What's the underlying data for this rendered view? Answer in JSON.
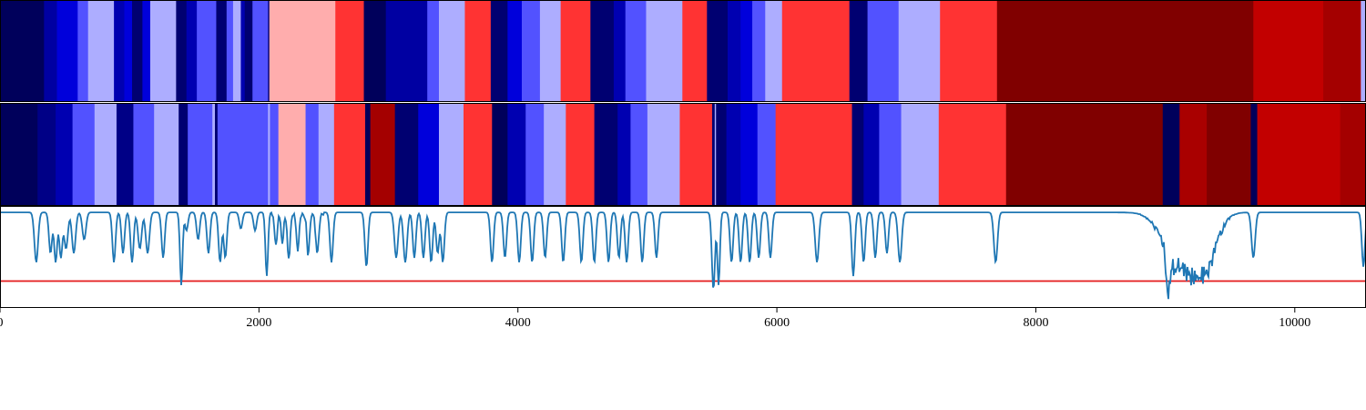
{
  "chart_data": [
    {
      "type": "heatmap",
      "panel": "top-strip",
      "colormap": "seismic",
      "xlim": [
        0,
        10550
      ],
      "segments": [
        [
          0,
          340,
          0.02
        ],
        [
          340,
          440,
          0.12
        ],
        [
          440,
          600,
          0.2
        ],
        [
          600,
          680,
          0.33
        ],
        [
          680,
          880,
          0.42
        ],
        [
          880,
          960,
          0.14
        ],
        [
          960,
          1020,
          0.2
        ],
        [
          1020,
          1100,
          0.05
        ],
        [
          1100,
          1160,
          0.2
        ],
        [
          1160,
          1360,
          0.42
        ],
        [
          1360,
          1440,
          0.05
        ],
        [
          1440,
          1520,
          0.14
        ],
        [
          1520,
          1670,
          0.33
        ],
        [
          1670,
          1750,
          0.05
        ],
        [
          1750,
          1800,
          0.33
        ],
        [
          1800,
          1860,
          0.42
        ],
        [
          1860,
          1890,
          0.14
        ],
        [
          1890,
          1950,
          0.05
        ],
        [
          1950,
          2070,
          0.33
        ],
        [
          2070,
          2080,
          0.05
        ],
        [
          2080,
          2590,
          0.58
        ],
        [
          2590,
          2810,
          0.7
        ],
        [
          2810,
          2980,
          0.02
        ],
        [
          2980,
          3300,
          0.12
        ],
        [
          3300,
          3390,
          0.33
        ],
        [
          3390,
          3590,
          0.42
        ],
        [
          3590,
          3790,
          0.7
        ],
        [
          3790,
          3920,
          0.05
        ],
        [
          3920,
          4030,
          0.2
        ],
        [
          4030,
          4170,
          0.33
        ],
        [
          4170,
          4330,
          0.42
        ],
        [
          4330,
          4560,
          0.7
        ],
        [
          4560,
          4740,
          0.05
        ],
        [
          4740,
          4830,
          0.14
        ],
        [
          4830,
          4990,
          0.33
        ],
        [
          4990,
          5270,
          0.42
        ],
        [
          5270,
          5460,
          0.7
        ],
        [
          5460,
          5620,
          0.05
        ],
        [
          5620,
          5720,
          0.14
        ],
        [
          5720,
          5810,
          0.2
        ],
        [
          5810,
          5910,
          0.33
        ],
        [
          5910,
          6040,
          0.42
        ],
        [
          6040,
          6560,
          0.7
        ],
        [
          6560,
          6700,
          0.05
        ],
        [
          6700,
          6940,
          0.33
        ],
        [
          6940,
          7260,
          0.42
        ],
        [
          7260,
          7700,
          0.7
        ],
        [
          7700,
          9680,
          1.0
        ],
        [
          9680,
          10220,
          0.87
        ],
        [
          10220,
          10510,
          0.93
        ],
        [
          10510,
          10550,
          0.42
        ]
      ]
    },
    {
      "type": "heatmap",
      "panel": "middle-strip",
      "colormap": "seismic",
      "xlim": [
        0,
        10550
      ],
      "segments": [
        [
          0,
          290,
          0.02
        ],
        [
          290,
          430,
          0.08
        ],
        [
          430,
          560,
          0.14
        ],
        [
          560,
          730,
          0.33
        ],
        [
          730,
          900,
          0.42
        ],
        [
          900,
          1030,
          0.08
        ],
        [
          1030,
          1190,
          0.33
        ],
        [
          1190,
          1380,
          0.42
        ],
        [
          1380,
          1450,
          0.05
        ],
        [
          1450,
          1640,
          0.33
        ],
        [
          1640,
          1660,
          0.42
        ],
        [
          1660,
          1680,
          0.05
        ],
        [
          1680,
          2070,
          0.33
        ],
        [
          2070,
          2085,
          0.42
        ],
        [
          2085,
          2150,
          0.33
        ],
        [
          2150,
          2360,
          0.58
        ],
        [
          2360,
          2460,
          0.33
        ],
        [
          2460,
          2580,
          0.42
        ],
        [
          2580,
          2820,
          0.7
        ],
        [
          2820,
          2860,
          0.02
        ],
        [
          2860,
          3050,
          0.93
        ],
        [
          3050,
          3230,
          0.05
        ],
        [
          3230,
          3390,
          0.2
        ],
        [
          3390,
          3580,
          0.42
        ],
        [
          3580,
          3800,
          0.7
        ],
        [
          3800,
          3920,
          0.02
        ],
        [
          3920,
          4060,
          0.14
        ],
        [
          4060,
          4200,
          0.33
        ],
        [
          4200,
          4370,
          0.42
        ],
        [
          4370,
          4590,
          0.7
        ],
        [
          4590,
          4770,
          0.05
        ],
        [
          4770,
          4870,
          0.14
        ],
        [
          4870,
          5000,
          0.33
        ],
        [
          5000,
          5250,
          0.42
        ],
        [
          5250,
          5500,
          0.7
        ],
        [
          5500,
          5520,
          0.05
        ],
        [
          5520,
          5530,
          0.42
        ],
        [
          5530,
          5610,
          0.05
        ],
        [
          5610,
          5720,
          0.14
        ],
        [
          5720,
          5850,
          0.2
        ],
        [
          5850,
          5990,
          0.33
        ],
        [
          5990,
          6580,
          0.7
        ],
        [
          6580,
          6670,
          0.05
        ],
        [
          6670,
          6790,
          0.14
        ],
        [
          6790,
          6960,
          0.33
        ],
        [
          6960,
          7250,
          0.42
        ],
        [
          7250,
          7770,
          0.7
        ],
        [
          7770,
          8980,
          1.0
        ],
        [
          8980,
          9110,
          0.02
        ],
        [
          9110,
          9320,
          0.92
        ],
        [
          9320,
          9660,
          1.0
        ],
        [
          9660,
          9710,
          0.02
        ],
        [
          9710,
          10350,
          0.87
        ],
        [
          10350,
          10550,
          0.93
        ]
      ]
    },
    {
      "type": "line",
      "panel": "bottom-line",
      "xlim": [
        0,
        10550
      ],
      "ylim": [
        -0.05,
        1.05
      ],
      "ticks": [
        "0",
        "2000",
        "4000",
        "6000",
        "8000",
        "10000"
      ],
      "tick_values": [
        0,
        2000,
        4000,
        6000,
        8000,
        10000
      ],
      "line_color": "#1f77b4",
      "threshold": 0.24,
      "threshold_color": "#e41a1c",
      "dips": [
        [
          280,
          0.45,
          14
        ],
        [
          390,
          0.55,
          12
        ],
        [
          430,
          0.45,
          12
        ],
        [
          470,
          0.5,
          12
        ],
        [
          510,
          0.6,
          14
        ],
        [
          570,
          0.55,
          14
        ],
        [
          650,
          0.7,
          14
        ],
        [
          880,
          0.45,
          12
        ],
        [
          950,
          0.55,
          12
        ],
        [
          1020,
          0.45,
          12
        ],
        [
          1080,
          0.6,
          14
        ],
        [
          1140,
          0.55,
          14
        ],
        [
          1260,
          0.5,
          12
        ],
        [
          1400,
          0.2,
          10
        ],
        [
          1440,
          0.8,
          12
        ],
        [
          1530,
          0.7,
          12
        ],
        [
          1610,
          0.55,
          12
        ],
        [
          1700,
          0.45,
          12
        ],
        [
          1740,
          0.5,
          12
        ],
        [
          1860,
          0.82,
          12
        ],
        [
          1970,
          0.8,
          12
        ],
        [
          2060,
          0.3,
          10
        ],
        [
          2130,
          0.65,
          10
        ],
        [
          2180,
          0.7,
          10
        ],
        [
          2230,
          0.5,
          10
        ],
        [
          2300,
          0.6,
          10
        ],
        [
          2380,
          0.55,
          10
        ],
        [
          2450,
          0.6,
          12
        ],
        [
          2560,
          0.45,
          12
        ],
        [
          2830,
          0.4,
          12
        ],
        [
          3060,
          0.5,
          14
        ],
        [
          3130,
          0.45,
          14
        ],
        [
          3200,
          0.5,
          12
        ],
        [
          3270,
          0.5,
          12
        ],
        [
          3330,
          0.45,
          12
        ],
        [
          3380,
          0.55,
          12
        ],
        [
          3420,
          0.45,
          12
        ],
        [
          3800,
          0.45,
          12
        ],
        [
          3900,
          0.5,
          12
        ],
        [
          4010,
          0.45,
          12
        ],
        [
          4110,
          0.45,
          12
        ],
        [
          4210,
          0.5,
          12
        ],
        [
          4350,
          0.45,
          12
        ],
        [
          4490,
          0.45,
          12
        ],
        [
          4590,
          0.45,
          12
        ],
        [
          4700,
          0.45,
          12
        ],
        [
          4780,
          0.5,
          12
        ],
        [
          4840,
          0.45,
          12
        ],
        [
          4960,
          0.45,
          12
        ],
        [
          5070,
          0.5,
          12
        ],
        [
          5510,
          0.15,
          12
        ],
        [
          5550,
          0.2,
          10
        ],
        [
          5650,
          0.45,
          12
        ],
        [
          5720,
          0.45,
          12
        ],
        [
          5790,
          0.45,
          12
        ],
        [
          5860,
          0.5,
          12
        ],
        [
          5950,
          0.5,
          12
        ],
        [
          6310,
          0.45,
          14
        ],
        [
          6590,
          0.3,
          12
        ],
        [
          6670,
          0.45,
          12
        ],
        [
          6760,
          0.5,
          12
        ],
        [
          6850,
          0.55,
          12
        ],
        [
          6950,
          0.45,
          14
        ],
        [
          7690,
          0.45,
          14
        ],
        [
          9020,
          0.5,
          14
        ],
        [
          9680,
          0.5,
          14
        ],
        [
          10530,
          0.4,
          12
        ]
      ],
      "broad_dips": [
        [
          9110,
          0.45,
          120
        ],
        [
          9310,
          0.5,
          90
        ]
      ]
    }
  ]
}
